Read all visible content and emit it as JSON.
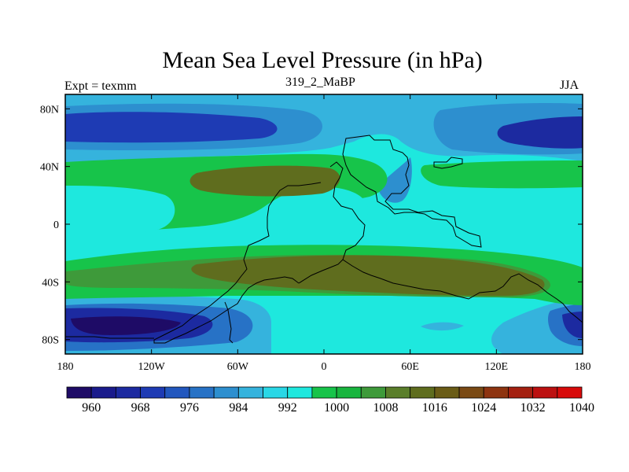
{
  "title": "Mean Sea Level Pressure (in hPa)",
  "subtitle_left": "Expt = texmm",
  "subtitle_center": "319_2_MaBP",
  "subtitle_right": "JJA",
  "map": {
    "lon_range": [
      -180,
      180
    ],
    "lat_range": [
      -90,
      90
    ],
    "lon_ticks": [
      {
        "value": -180,
        "label": "180"
      },
      {
        "value": -120,
        "label": "120W"
      },
      {
        "value": -60,
        "label": "60W"
      },
      {
        "value": 0,
        "label": "0"
      },
      {
        "value": 60,
        "label": "60E"
      },
      {
        "value": 120,
        "label": "120E"
      },
      {
        "value": 180,
        "label": "180"
      }
    ],
    "lat_ticks": [
      {
        "value": 80,
        "label": "80N"
      },
      {
        "value": 40,
        "label": "40N"
      },
      {
        "value": 0,
        "label": "0"
      },
      {
        "value": -40,
        "label": "40S"
      },
      {
        "value": -80,
        "label": "80S"
      }
    ]
  },
  "colorbar": {
    "colors": [
      "#1e0b66",
      "#1a1b8c",
      "#1c2aa0",
      "#1e3bb4",
      "#2257be",
      "#2772c6",
      "#2d8fcf",
      "#35b3dd",
      "#29d7e6",
      "#1ee8de",
      "#17c44a",
      "#18b53e",
      "#3e9a3a",
      "#5a7e2a",
      "#5f6d1e",
      "#6a5c16",
      "#7a4a14",
      "#8e3410",
      "#a42010",
      "#bc1010",
      "#d80a0a"
    ],
    "labels": [
      {
        "index": 1,
        "label": "960"
      },
      {
        "index": 3,
        "label": "968"
      },
      {
        "index": 5,
        "label": "976"
      },
      {
        "index": 7,
        "label": "984"
      },
      {
        "index": 9,
        "label": "992"
      },
      {
        "index": 11,
        "label": "1000"
      },
      {
        "index": 13,
        "label": "1008"
      },
      {
        "index": 15,
        "label": "1016"
      },
      {
        "index": 17,
        "label": "1024"
      },
      {
        "index": 19,
        "label": "1032"
      },
      {
        "index": 21,
        "label": "1040"
      }
    ]
  }
}
